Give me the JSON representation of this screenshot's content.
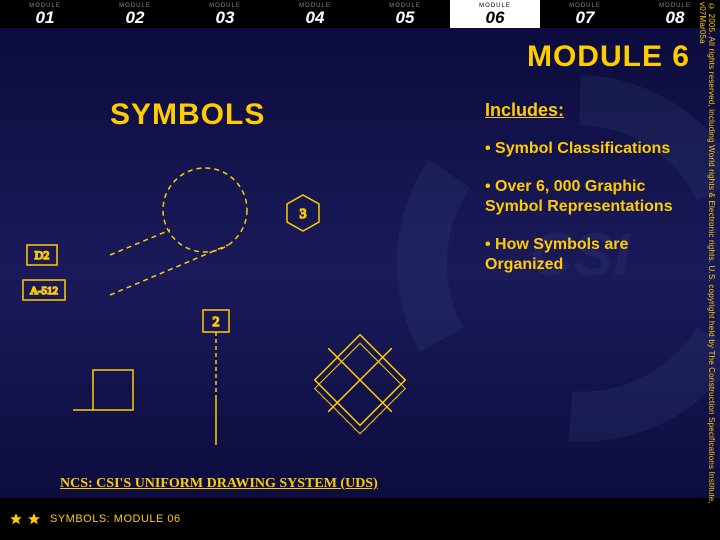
{
  "modules": [
    "01",
    "02",
    "03",
    "04",
    "05",
    "06",
    "07",
    "08"
  ],
  "module_label": "MODULE",
  "active_module_index": 5,
  "title": "MODULE 6",
  "main_title": "SYMBOLS",
  "includes_head": "Includes:",
  "includes_items": [
    "• Symbol Classifications",
    "• Over 6, 000 Graphic Symbol Representations",
    "• How Symbols are Organized"
  ],
  "ncs_line": "NCS: CSI'S UNIFORM DRAWING SYSTEM (UDS)",
  "footer_text": "SYMBOLS: MODULE 06",
  "copyright": "© 2005. All rights reserved, including World rights & Electronic rights. U.S. copyright held by The Construction Specifications Institute, v07Mar05a",
  "colors": {
    "bg_top": "#0a0a3a",
    "bg_mid": "#1a1a5a",
    "accent": "#ffcc00",
    "black": "#000000",
    "white": "#ffffff"
  },
  "diagram": {
    "stroke": "#ffcc00",
    "labels": {
      "d2": "D2",
      "a512": "A-512",
      "hex": "3",
      "keynote": "2"
    }
  }
}
